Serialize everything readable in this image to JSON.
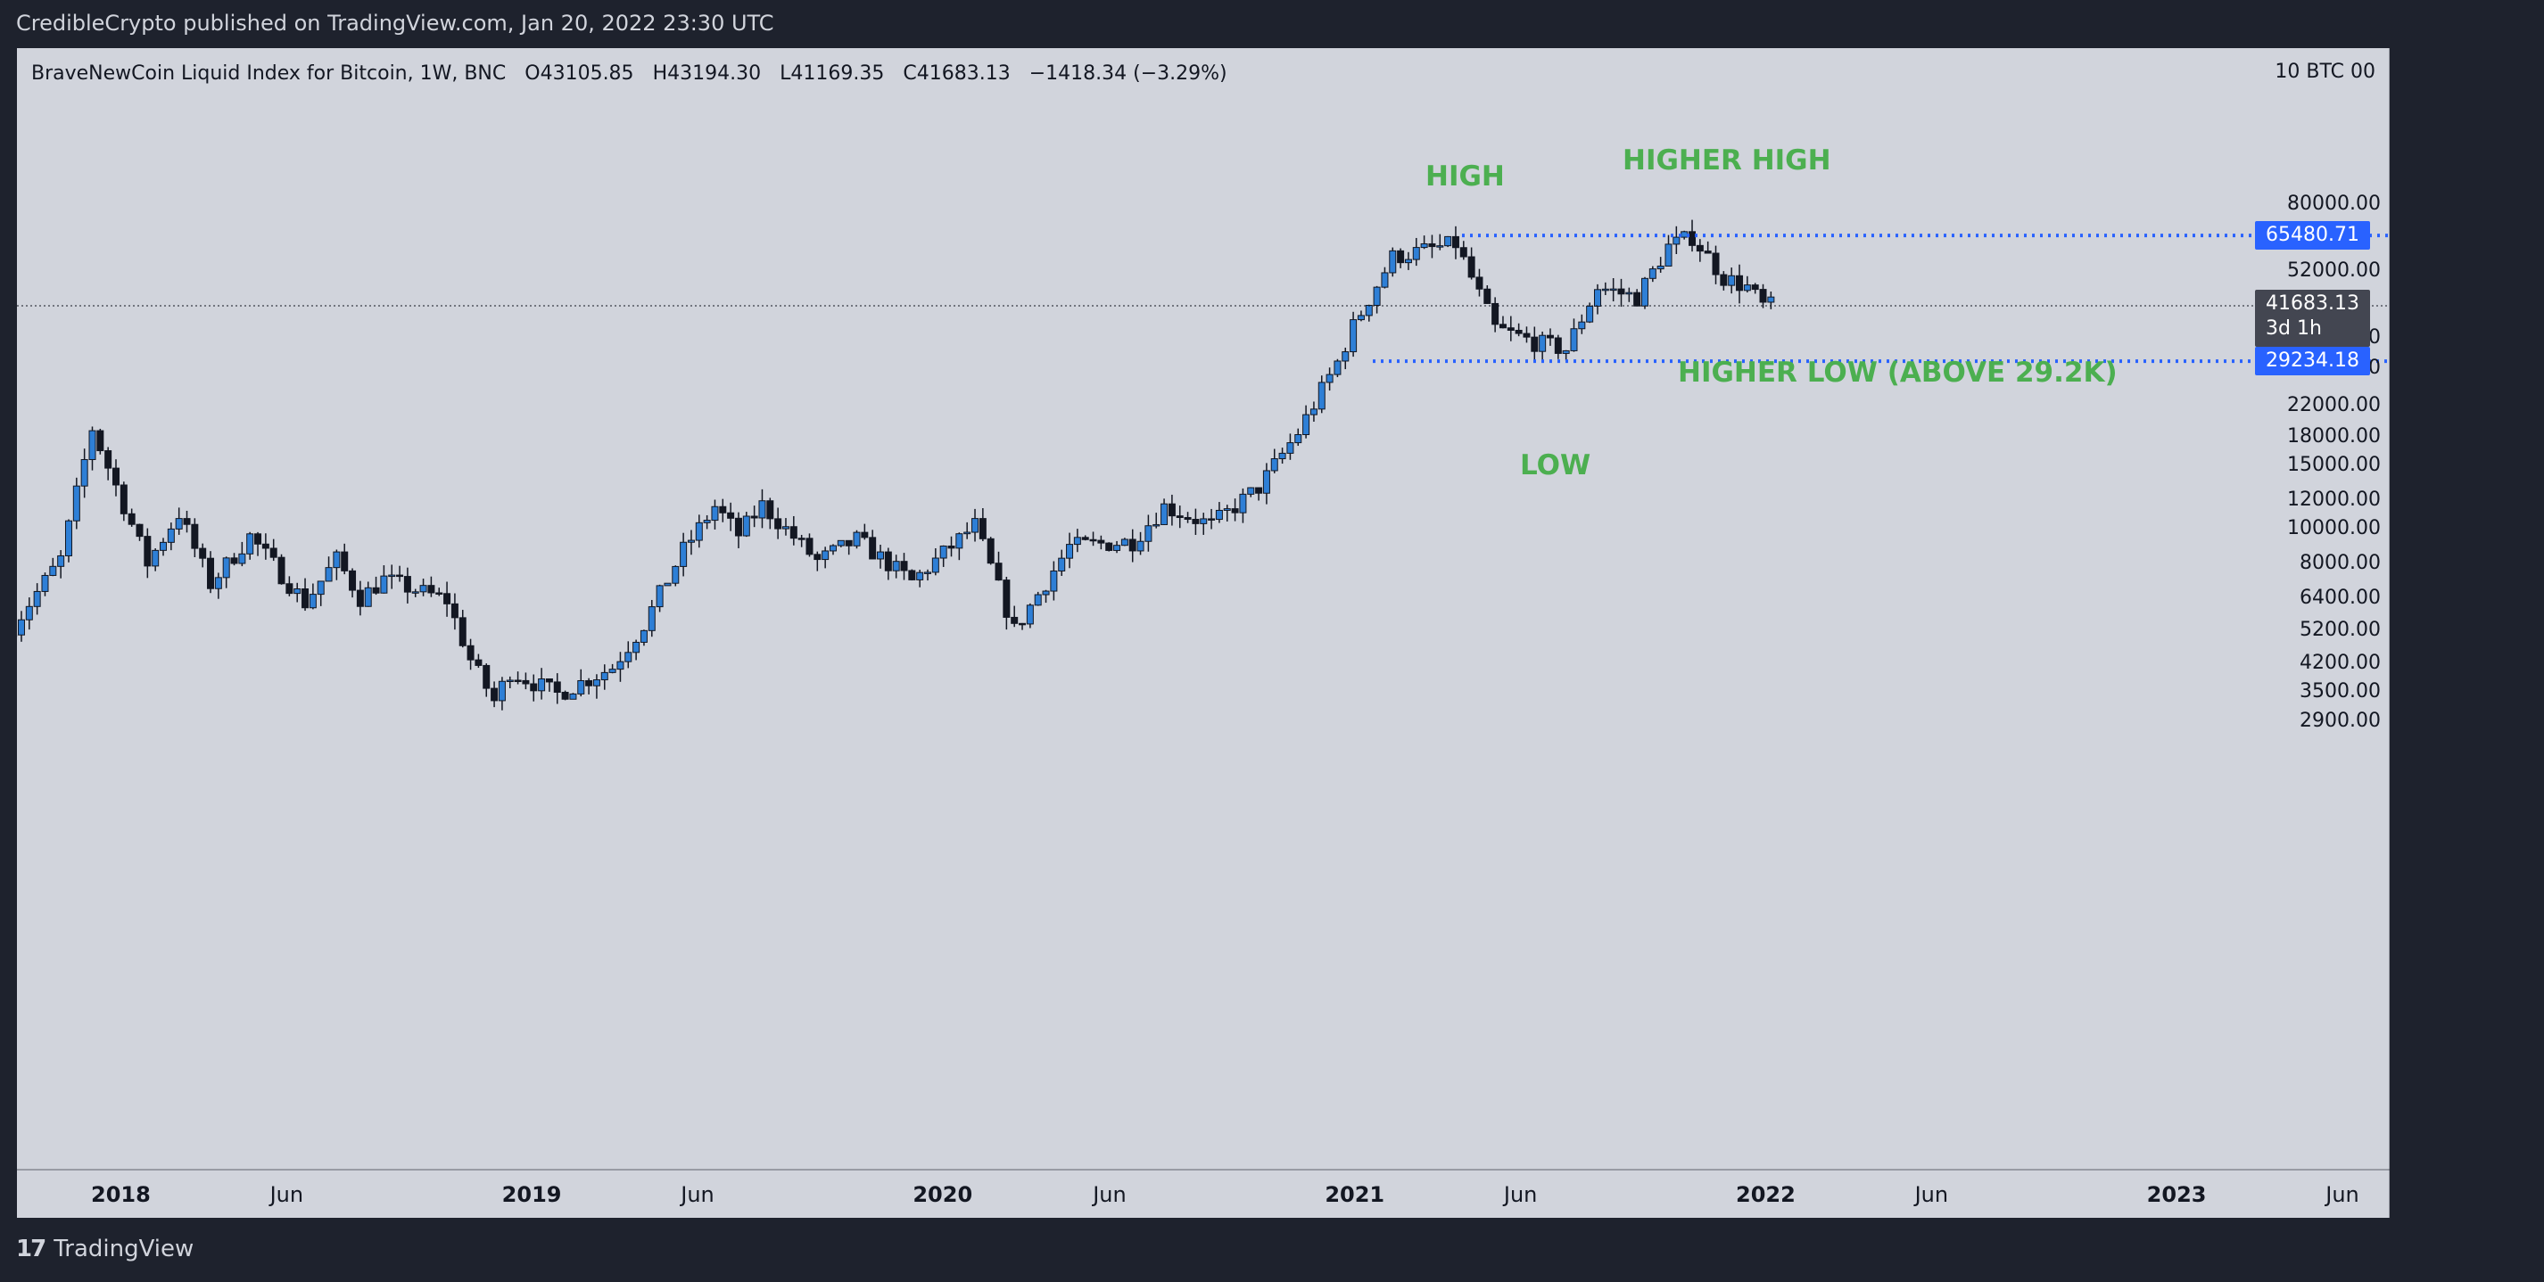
{
  "header": {
    "published": "CredibleCrypto published on TradingView.com, Jan 20, 2022 23:30 UTC"
  },
  "legend": {
    "symbol": "BraveNewCoin Liquid Index for Bitcoin, 1W, BNC",
    "open_label": "O",
    "open": "43105.85",
    "high_label": "H",
    "high": "43194.30",
    "low_label": "L",
    "low": "41169.35",
    "close_label": "C",
    "close": "41683.13",
    "change": "−1418.34 (−3.29%)"
  },
  "price_axis": {
    "currency": "BTC 00",
    "currency_prefix": "10",
    "ticks": [
      "80000.00",
      "52000.00",
      "34000.00",
      "28000.00",
      "22000.00",
      "18000.00",
      "15000.00",
      "12000.00",
      "10000.00",
      "8000.00",
      "6400.00",
      "5200.00",
      "4200.00",
      "3500.00",
      "2900.00"
    ],
    "high_tag": "65480.71",
    "low_tag": "29234.18",
    "last_price": "41683.13",
    "countdown": "3d 1h"
  },
  "time_axis": {
    "labels": [
      {
        "text": "2018",
        "major": true
      },
      {
        "text": "Jun",
        "major": false
      },
      {
        "text": "2019",
        "major": true
      },
      {
        "text": "Jun",
        "major": false
      },
      {
        "text": "2020",
        "major": true
      },
      {
        "text": "Jun",
        "major": false
      },
      {
        "text": "2021",
        "major": true
      },
      {
        "text": "Jun",
        "major": false
      },
      {
        "text": "2022",
        "major": true
      },
      {
        "text": "Jun",
        "major": false
      },
      {
        "text": "2023",
        "major": true
      },
      {
        "text": "Jun",
        "major": false
      }
    ]
  },
  "annotations": {
    "high": "HIGH",
    "higher_high": "HIGHER HIGH",
    "low": "LOW",
    "higher_low": "HIGHER LOW (ABOVE 29.2K)"
  },
  "footer": {
    "brand": "TradingView",
    "logo_text": "17"
  },
  "colors": {
    "background": "#d1d4dc",
    "up_candle": "#2e7fd6",
    "down_candle": "#131722",
    "annotation": "#4caf50",
    "level_line": "#2962ff"
  },
  "chart_data": {
    "type": "candlestick",
    "title": "BraveNewCoin Liquid Index for Bitcoin, 1W, BNC",
    "yscale": "log",
    "ylim": [
      2500,
      100000
    ],
    "xlim": [
      "2017-10-01",
      "2023-07-15"
    ],
    "horizontal_levels": [
      65480.71,
      29234.18,
      41683.13
    ],
    "anchors": [
      {
        "date": "2017-10-02",
        "price": 5000
      },
      {
        "date": "2017-11-20",
        "price": 8200
      },
      {
        "date": "2017-12-18",
        "price": 19000
      },
      {
        "date": "2018-02-05",
        "price": 8000
      },
      {
        "date": "2018-03-05",
        "price": 11000
      },
      {
        "date": "2018-04-02",
        "price": 7000
      },
      {
        "date": "2018-05-07",
        "price": 9500
      },
      {
        "date": "2018-06-25",
        "price": 6200
      },
      {
        "date": "2018-07-23",
        "price": 8200
      },
      {
        "date": "2018-08-13",
        "price": 6400
      },
      {
        "date": "2018-09-03",
        "price": 7200
      },
      {
        "date": "2018-10-29",
        "price": 6300
      },
      {
        "date": "2018-11-19",
        "price": 4300
      },
      {
        "date": "2018-12-10",
        "price": 3300
      },
      {
        "date": "2018-12-24",
        "price": 4000
      },
      {
        "date": "2019-02-04",
        "price": 3450
      },
      {
        "date": "2019-03-25",
        "price": 4100
      },
      {
        "date": "2019-04-22",
        "price": 5400
      },
      {
        "date": "2019-05-27",
        "price": 8700
      },
      {
        "date": "2019-06-24",
        "price": 11500
      },
      {
        "date": "2019-07-15",
        "price": 9600
      },
      {
        "date": "2019-08-05",
        "price": 11600
      },
      {
        "date": "2019-09-23",
        "price": 8100
      },
      {
        "date": "2019-10-28",
        "price": 9300
      },
      {
        "date": "2019-12-16",
        "price": 7100
      },
      {
        "date": "2020-02-10",
        "price": 10200
      },
      {
        "date": "2020-03-16",
        "price": 5200
      },
      {
        "date": "2020-05-04",
        "price": 8900
      },
      {
        "date": "2020-06-29",
        "price": 9200
      },
      {
        "date": "2020-07-27",
        "price": 11500
      },
      {
        "date": "2020-09-07",
        "price": 10200
      },
      {
        "date": "2020-10-19",
        "price": 13000
      },
      {
        "date": "2020-11-23",
        "price": 18500
      },
      {
        "date": "2020-12-28",
        "price": 29000
      },
      {
        "date": "2021-01-11",
        "price": 36500
      },
      {
        "date": "2021-02-15",
        "price": 57000
      },
      {
        "date": "2021-04-12",
        "price": 62000
      },
      {
        "date": "2021-05-17",
        "price": 36000
      },
      {
        "date": "2021-06-21",
        "price": 33000
      },
      {
        "date": "2021-07-19",
        "price": 31500
      },
      {
        "date": "2021-08-16",
        "price": 47000
      },
      {
        "date": "2021-09-20",
        "price": 44000
      },
      {
        "date": "2021-10-18",
        "price": 61000
      },
      {
        "date": "2021-11-08",
        "price": 65000
      },
      {
        "date": "2021-12-06",
        "price": 50000
      },
      {
        "date": "2021-12-27",
        "price": 47000
      },
      {
        "date": "2022-01-10",
        "price": 41683
      }
    ]
  }
}
